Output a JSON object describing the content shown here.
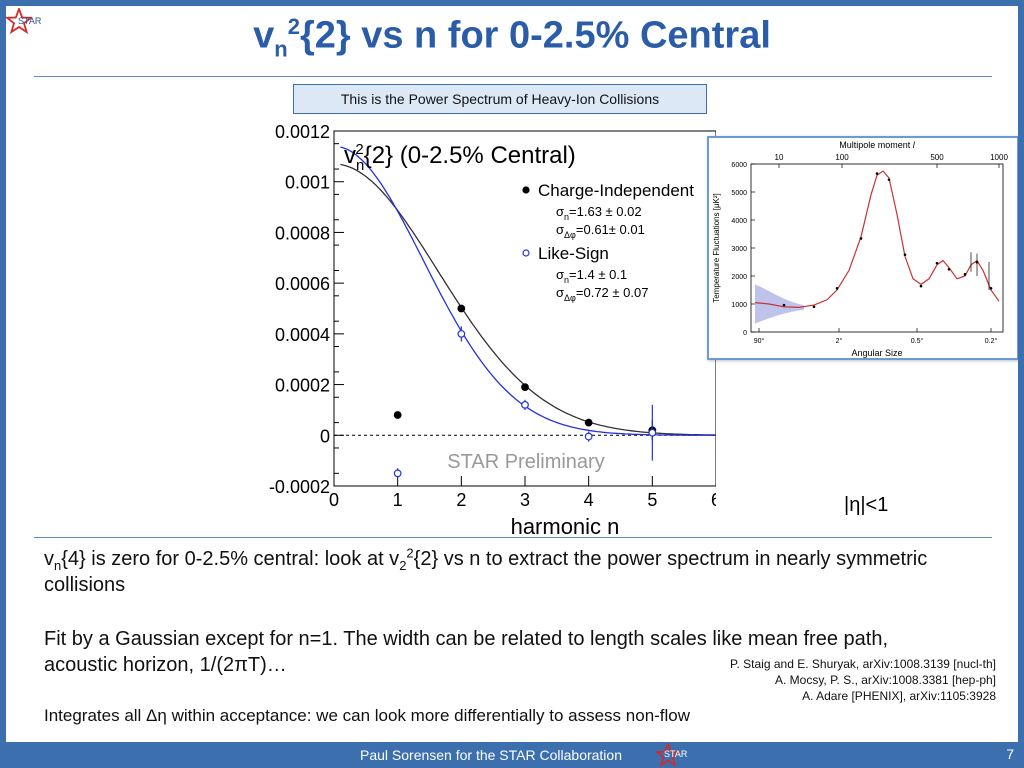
{
  "logos": {
    "star_label": "STAR"
  },
  "title": {
    "v": "v",
    "sub": "n",
    "sup": "2",
    "rest": "{2} vs n for 0-2.5% Central"
  },
  "banner": "This is the Power Spectrum of Heavy-Ion Collisions",
  "chart_data": {
    "type": "scatter",
    "title_main": "{2} (0-2.5% Central)",
    "title_v": "v",
    "title_sub": "n",
    "title_sup": "2",
    "xlabel": "harmonic n",
    "ylabel": "",
    "xlim": [
      0,
      6
    ],
    "ylim": [
      -0.0002,
      0.0012
    ],
    "x_ticks": [
      "0",
      "1",
      "2",
      "3",
      "4",
      "5",
      "6"
    ],
    "y_ticks": [
      "0.0012",
      "0.001",
      "0.0008",
      "0.0006",
      "0.0004",
      "0.0002",
      "0",
      "-0.0002"
    ],
    "watermark": "STAR Preliminary",
    "series": [
      {
        "name": "Charge-Independent",
        "marker": "filled-circle",
        "color": "#000000",
        "x": [
          1,
          2,
          3,
          4,
          5
        ],
        "y": [
          8e-05,
          0.0005,
          0.00019,
          5e-05,
          2e-05
        ],
        "err": [
          3e-06,
          5e-06,
          4e-06,
          4e-06,
          4e-05
        ],
        "params": [
          "σ",
          "n",
          "=1.63 ± 0.02",
          "σ",
          "Δφ",
          "=0.61± 0.01"
        ],
        "fit": {
          "A": 0.00107,
          "sigma": 1.63,
          "color": "#333333"
        }
      },
      {
        "name": "Like-Sign",
        "marker": "open-circle",
        "color": "#2233dd",
        "x": [
          1,
          2,
          3,
          4,
          5
        ],
        "y": [
          -0.00015,
          0.0004,
          0.00012,
          -5e-06,
          1e-05
        ],
        "err": [
          2e-05,
          3e-05,
          2e-05,
          2e-05,
          0.00011
        ],
        "params": [
          "σ",
          "n",
          "=1.4 ± 0.1",
          "σ",
          "Δφ",
          "=0.72 ± 0.07"
        ],
        "fit": {
          "A": 0.00114,
          "sigma": 1.4,
          "color": "#2233dd"
        }
      }
    ]
  },
  "cmb_chart": {
    "type": "line",
    "top_axis_label": "Multipole moment",
    "top_axis_label_l": "l",
    "top_ticks": [
      "10",
      "100",
      "500",
      "1000"
    ],
    "ylabel": "Temperature Fluctuations [μK²]",
    "y_ticks": [
      "6000",
      "5000",
      "4000",
      "3000",
      "2000",
      "1000",
      "0"
    ],
    "xlabel": "Angular Size",
    "x_ticks": [
      "90°",
      "2°",
      "0.5°",
      "0.2°"
    ],
    "ylim": [
      0,
      6000
    ]
  },
  "eta_note": "|η|<1",
  "bullets": [
    {
      "parts": [
        "v",
        "n",
        "{4} is zero for 0-2.5% central: look at v",
        "2",
        "2",
        "{2} vs n to extract the power spectrum in nearly symmetric collisions"
      ]
    },
    {
      "text": "Fit by a Gaussian except for n=1. The width can be related to length scales like mean free path, acoustic horizon, 1/(2πT)…"
    },
    {
      "text": "Integrates all Δη within acceptance: we can look more differentially to assess non-flow"
    }
  ],
  "references": [
    "P. Staig and E. Shuryak, arXiv:1008.3139 [nucl-th]",
    "A. Mocsy, P. S., arXiv:1008.3381 [hep-ph]",
    "A. Adare [PHENIX], arXiv:1105:3928"
  ],
  "footer": {
    "text": "Paul Sorensen for the STAR Collaboration",
    "page": "7"
  },
  "colors": {
    "frame": "#3c6fad",
    "title": "#2a5ca8",
    "rule": "#5c8ecb"
  }
}
